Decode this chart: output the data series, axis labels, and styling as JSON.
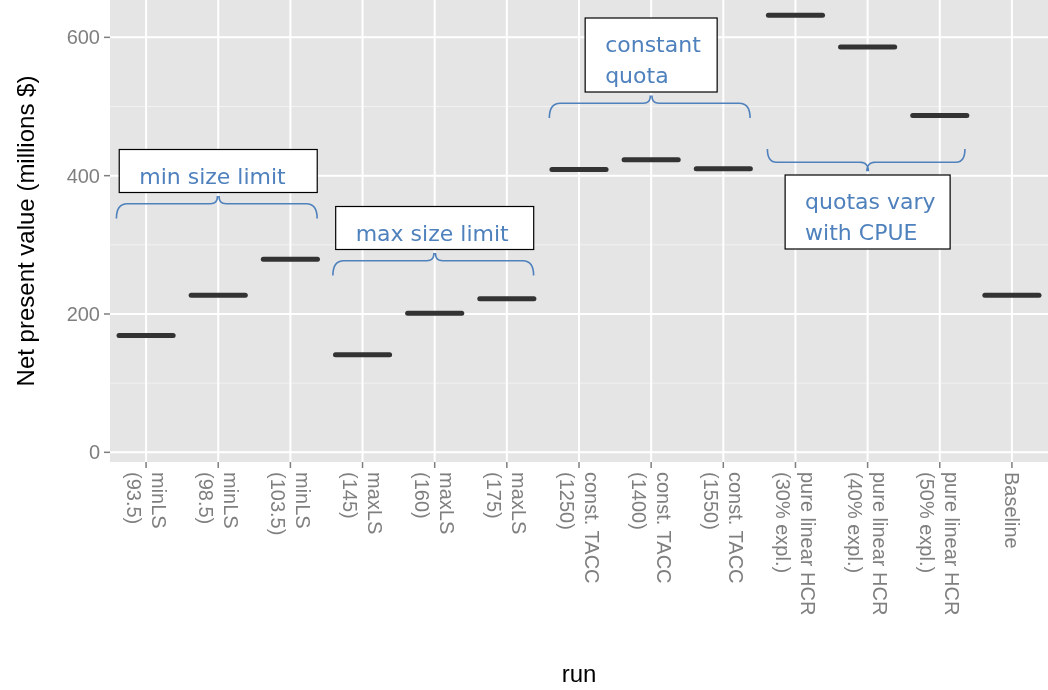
{
  "chart_data": {
    "type": "box",
    "xlabel": "run",
    "ylabel": "Net present value (millions $)",
    "categories": [
      "minLS\n(93.5)",
      "minLS\n(98.5)",
      "minLS\n(103.5)",
      "maxLS\n(145)",
      "maxLS\n(160)",
      "maxLS\n(175)",
      "const. TACC\n(1250)",
      "const. TACC\n(1400)",
      "const. TACC\n(1550)",
      "pure linear HCR\n(30% expl.)",
      "pure linear HCR\n(40% expl.)",
      "pure linear HCR\n(50% expl.)",
      "Baseline"
    ],
    "boxes": [
      {
        "low": 169,
        "q1": 169,
        "median": 169,
        "q3": 169,
        "high": 169
      },
      {
        "low": 227,
        "q1": 227,
        "median": 227,
        "q3": 227,
        "high": 227
      },
      {
        "low": 279,
        "q1": 279,
        "median": 279,
        "q3": 279,
        "high": 279
      },
      {
        "low": 141,
        "q1": 141,
        "median": 141,
        "q3": 141,
        "high": 141
      },
      {
        "low": 201,
        "q1": 201,
        "median": 201,
        "q3": 201,
        "high": 201
      },
      {
        "low": 222,
        "q1": 222,
        "median": 222,
        "q3": 222,
        "high": 222
      },
      {
        "low": 409,
        "q1": 409,
        "median": 409,
        "q3": 409,
        "high": 409
      },
      {
        "low": 423,
        "q1": 423,
        "median": 423,
        "q3": 423,
        "high": 423
      },
      {
        "low": 410,
        "q1": 410,
        "median": 410,
        "q3": 410,
        "high": 410
      },
      {
        "low": 632,
        "q1": 632,
        "median": 632,
        "q3": 632,
        "high": 632
      },
      {
        "low": 586,
        "q1": 586,
        "median": 586,
        "q3": 586,
        "high": 586
      },
      {
        "low": 487,
        "q1": 487,
        "median": 487,
        "q3": 487,
        "high": 487
      },
      {
        "low": 227,
        "q1": 227,
        "median": 227,
        "q3": 227,
        "high": 227
      }
    ],
    "color": "#333333",
    "ylim": [
      -14,
      654
    ],
    "yticks": [
      0,
      200,
      400,
      600
    ],
    "grid": true,
    "annotations": [
      "min size limit",
      "max size limit",
      "constant\nquota",
      "quotas vary\nwith CPUE"
    ]
  }
}
